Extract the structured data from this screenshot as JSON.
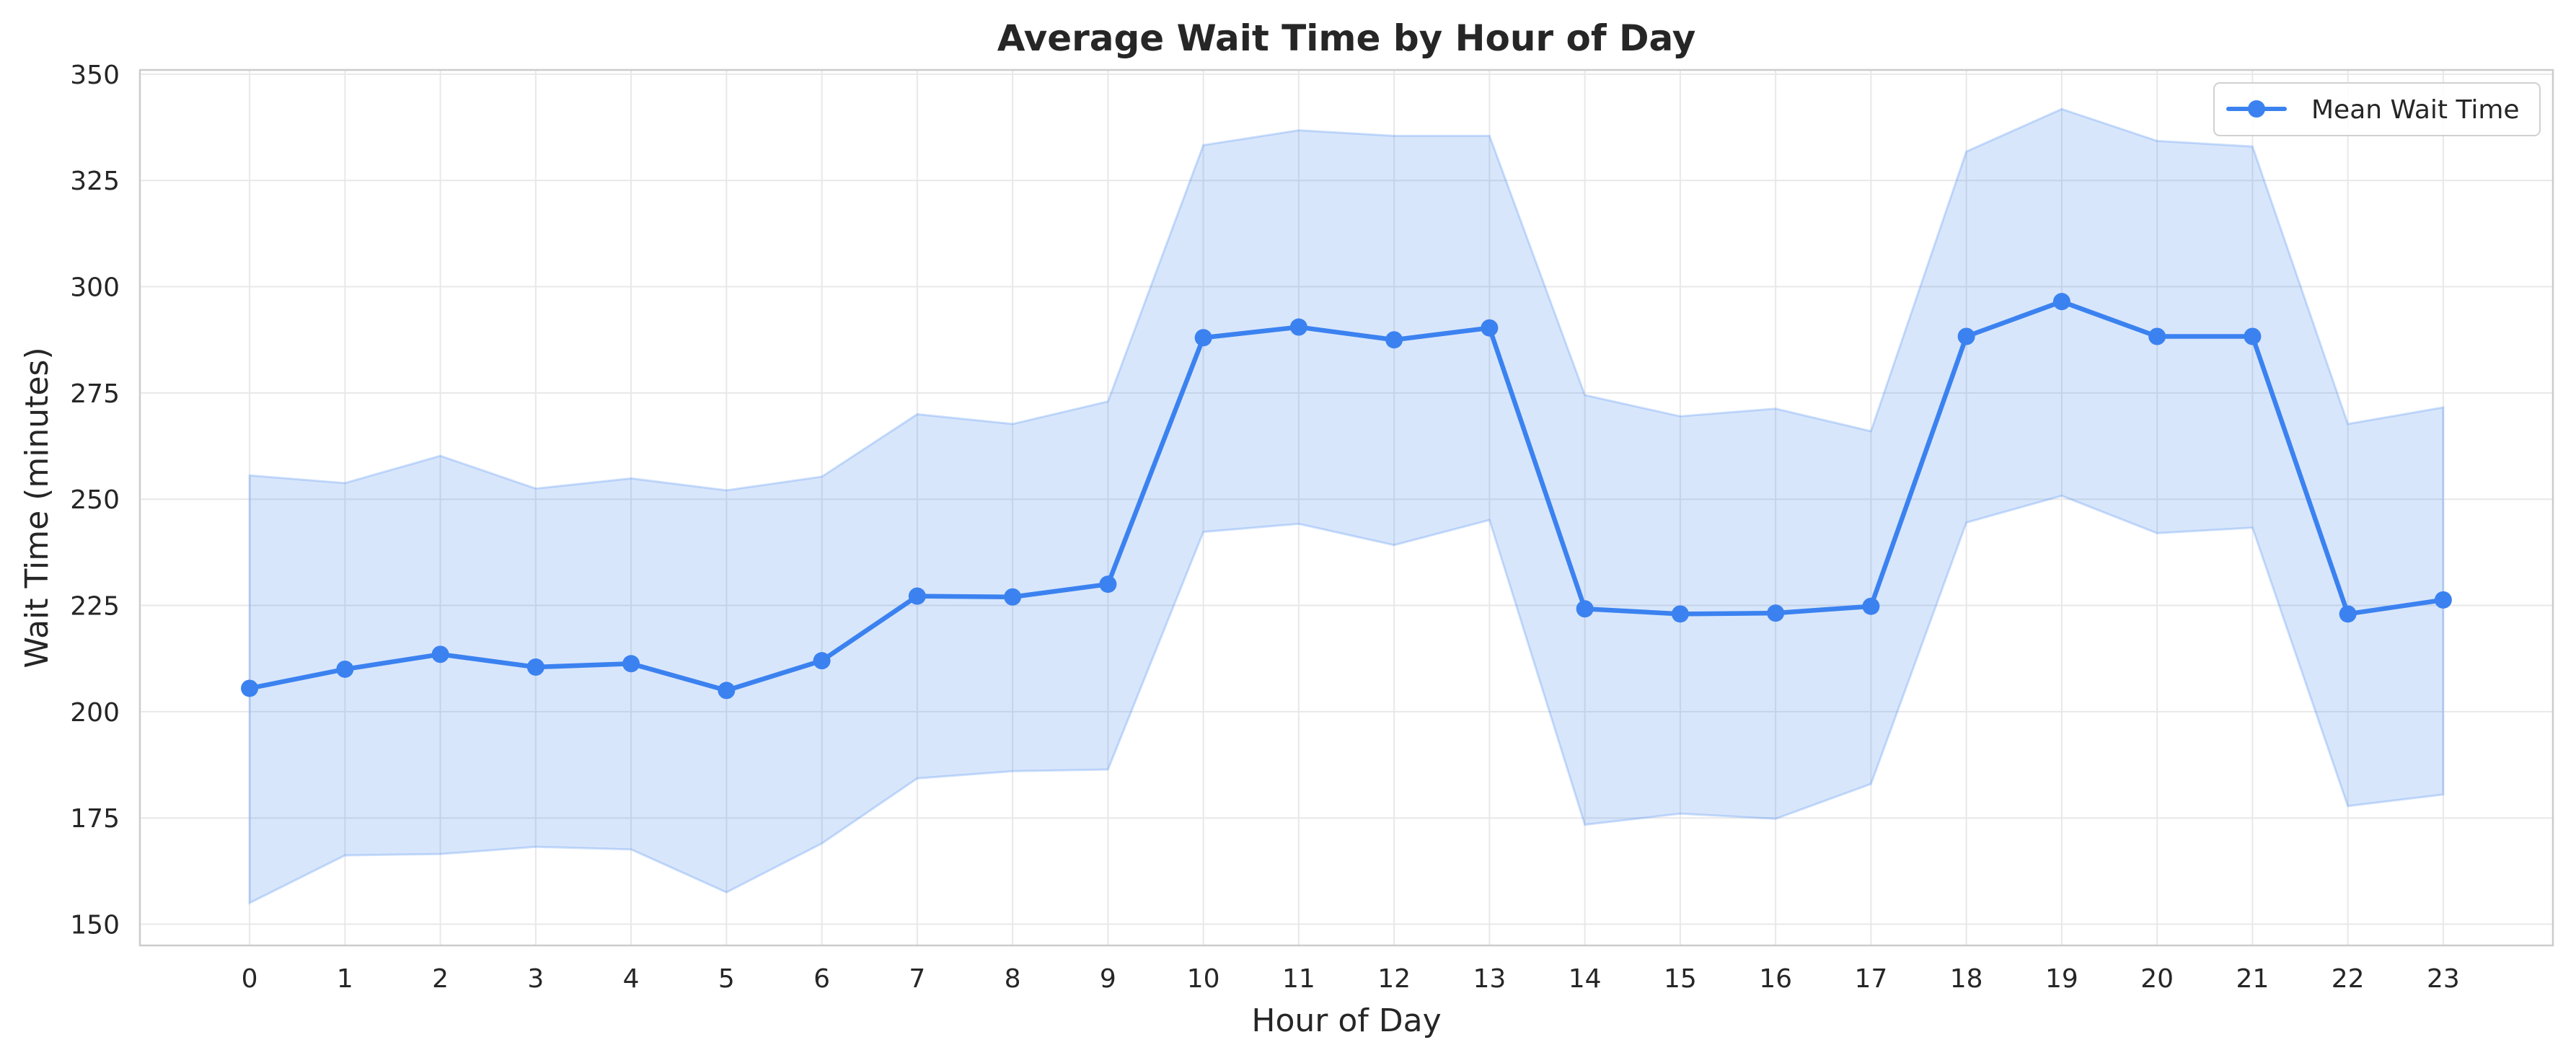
{
  "chart_data": {
    "type": "line",
    "title": "Average Wait Time by Hour of Day",
    "xlabel": "Hour of Day",
    "ylabel": "Wait Time (minutes)",
    "x": [
      0,
      1,
      2,
      3,
      4,
      5,
      6,
      7,
      8,
      9,
      10,
      11,
      12,
      13,
      14,
      15,
      16,
      17,
      18,
      19,
      20,
      21,
      22,
      23
    ],
    "xlim": [
      -1.15,
      24.15
    ],
    "ylim": [
      145,
      351
    ],
    "yticks": [
      150,
      175,
      200,
      225,
      250,
      275,
      300,
      325,
      350
    ],
    "grid": true,
    "legend_position": "top-right",
    "series": [
      {
        "name": "Mean Wait Time",
        "color": "#3b82f0",
        "values": [
          205.5,
          210,
          213.5,
          210.5,
          211.3,
          205,
          212,
          227.2,
          227,
          230,
          288,
          290.5,
          287.5,
          290.3,
          224.2,
          223,
          223.2,
          224.8,
          288.3,
          296.5,
          288.3,
          288.3,
          223,
          226.3
        ]
      }
    ],
    "band": {
      "color": "#3b82f0",
      "upper": [
        255.6,
        253.8,
        260.2,
        252.5,
        254.9,
        252.1,
        255.3,
        270,
        267.7,
        273,
        333.3,
        336.8,
        335.5,
        335.5,
        274.5,
        269.5,
        271.3,
        266,
        331.8,
        341.8,
        334.3,
        333,
        267.7,
        271.6
      ],
      "lower": [
        155,
        166.2,
        166.5,
        168.2,
        167.6,
        157.5,
        169,
        184.3,
        186,
        186.4,
        242.3,
        244.2,
        239.2,
        245.1,
        173.4,
        176,
        174.8,
        183,
        244.5,
        250.8,
        242,
        243.3,
        177.8,
        180.5
      ]
    }
  }
}
